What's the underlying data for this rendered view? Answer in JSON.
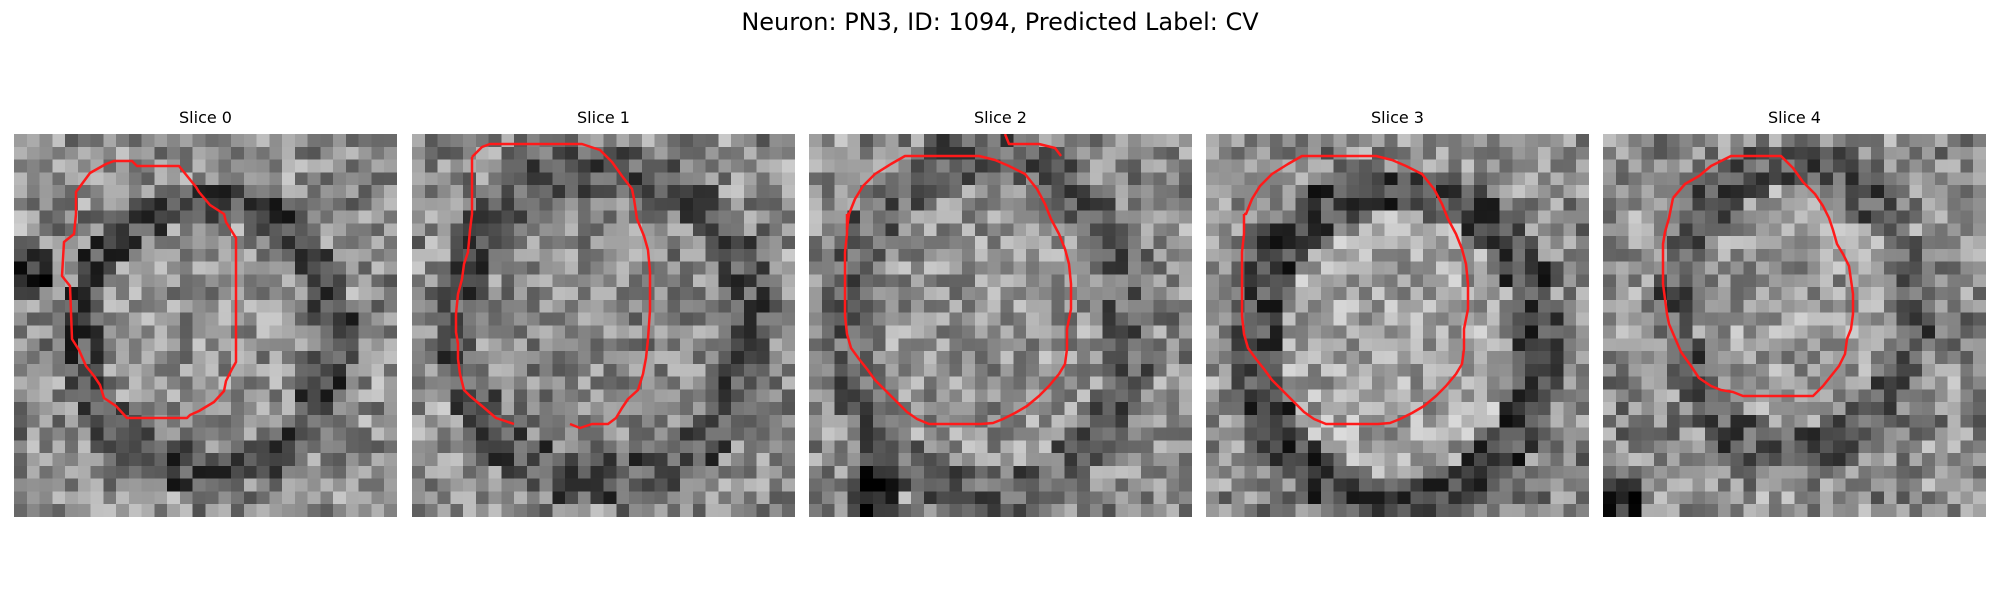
{
  "figure": {
    "title": "Neuron: PN3, ID: 1094, Predicted Label: CV"
  },
  "panels": [
    {
      "title": "Slice 0"
    },
    {
      "title": "Slice 1"
    },
    {
      "title": "Slice 2"
    },
    {
      "title": "Slice 3"
    },
    {
      "title": "Slice 4"
    }
  ],
  "colors": {
    "contour": "#ff1a1a",
    "background": "#ffffff"
  },
  "image": {
    "grid_cells": 30,
    "colormap": "grayscale"
  }
}
